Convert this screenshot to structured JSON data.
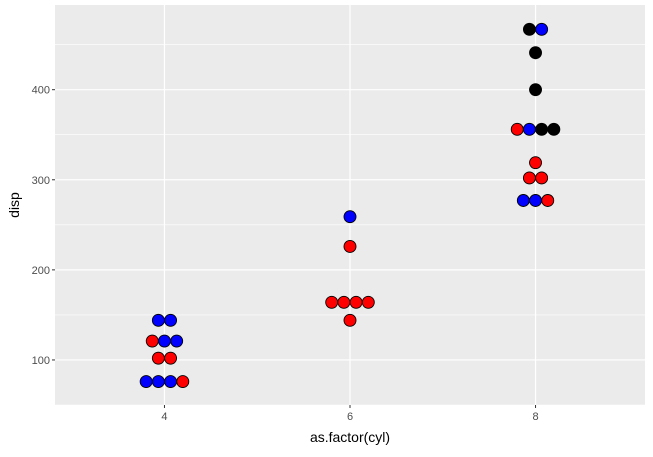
{
  "chart_data": {
    "type": "scatter",
    "subtype": "dotplot",
    "title": "",
    "xlabel": "as.factor(cyl)",
    "ylabel": "disp",
    "x_ticks": [
      "4",
      "6",
      "8"
    ],
    "y_ticks": [
      100,
      200,
      300,
      400
    ],
    "ylim": [
      50,
      494
    ],
    "xlim": [
      2.82,
      9.18
    ],
    "grid": true,
    "colors": {
      "red": "#FF0000",
      "blue": "#0000FF",
      "black": "#000000",
      "panel": "#EBEBEB",
      "grid": "#FFFFFF"
    },
    "points": [
      {
        "x": 4,
        "y": 144,
        "colors": [
          "blue",
          "blue"
        ]
      },
      {
        "x": 4,
        "y": 121,
        "colors": [
          "red",
          "blue",
          "blue"
        ]
      },
      {
        "x": 4,
        "y": 102,
        "colors": [
          "red",
          "red"
        ]
      },
      {
        "x": 4,
        "y": 76,
        "colors": [
          "blue",
          "blue",
          "blue",
          "red"
        ]
      },
      {
        "x": 6,
        "y": 259,
        "colors": [
          "blue"
        ]
      },
      {
        "x": 6,
        "y": 226,
        "colors": [
          "red"
        ]
      },
      {
        "x": 6,
        "y": 164,
        "colors": [
          "red",
          "red",
          "red",
          "red"
        ]
      },
      {
        "x": 6,
        "y": 144,
        "colors": [
          "red"
        ]
      },
      {
        "x": 8,
        "y": 467,
        "colors": [
          "black",
          "blue"
        ]
      },
      {
        "x": 8,
        "y": 441,
        "colors": [
          "black"
        ]
      },
      {
        "x": 8,
        "y": 400,
        "colors": [
          "black"
        ]
      },
      {
        "x": 8,
        "y": 356,
        "colors": [
          "red",
          "blue",
          "black",
          "black"
        ]
      },
      {
        "x": 8,
        "y": 319,
        "colors": [
          "red"
        ]
      },
      {
        "x": 8,
        "y": 302,
        "colors": [
          "red",
          "red"
        ]
      },
      {
        "x": 8,
        "y": 277,
        "colors": [
          "blue",
          "blue",
          "red"
        ]
      }
    ]
  }
}
